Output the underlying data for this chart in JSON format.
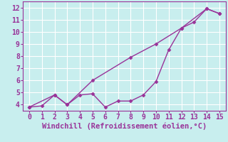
{
  "line1_x": [
    0,
    1,
    2,
    3,
    4,
    5,
    6,
    7,
    8,
    9,
    10,
    11,
    12,
    13,
    14,
    15
  ],
  "line1_y": [
    3.8,
    3.9,
    4.8,
    4.0,
    4.8,
    4.9,
    3.8,
    4.3,
    4.3,
    4.8,
    5.9,
    8.5,
    10.3,
    10.8,
    11.9,
    11.5
  ],
  "line2_x": [
    0,
    2,
    3,
    5,
    8,
    10,
    12,
    14,
    15
  ],
  "line2_y": [
    3.8,
    4.8,
    4.0,
    6.0,
    7.9,
    9.0,
    10.3,
    11.9,
    11.5
  ],
  "color": "#993399",
  "bg_color": "#c8eeee",
  "grid_color": "#ffffff",
  "xlabel": "Windchill (Refroidissement éolien,°C)",
  "xlim": [
    -0.5,
    15.5
  ],
  "ylim": [
    3.5,
    12.5
  ],
  "xticks": [
    0,
    1,
    2,
    3,
    4,
    5,
    6,
    7,
    8,
    9,
    10,
    11,
    12,
    13,
    14,
    15
  ],
  "yticks": [
    4,
    5,
    6,
    7,
    8,
    9,
    10,
    11,
    12
  ],
  "marker": "D",
  "markersize": 2.5,
  "linewidth": 1.0,
  "xlabel_fontsize": 7.5,
  "tick_fontsize": 7
}
